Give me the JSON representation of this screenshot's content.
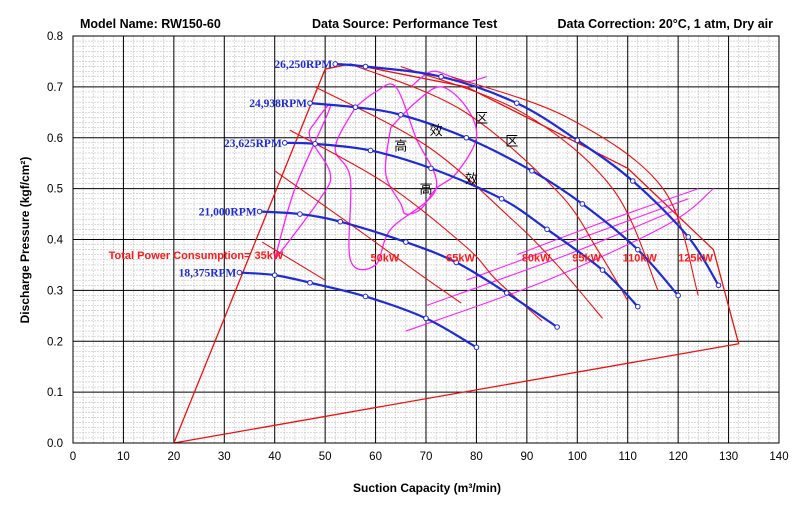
{
  "header": {
    "model": "Model Name: RW150-60",
    "source": "Data Source: Performance Test",
    "correction": "Data Correction: 20°C, 1 atm, Dry air"
  },
  "colors": {
    "rpm_curve": "#1f2bd4",
    "power_line": "#ee1111",
    "efficiency": "#ff22ff",
    "envelope": "#ee1111"
  },
  "chart_data": {
    "type": "line",
    "xlabel": "Suction Capacity (m³/min)",
    "ylabel": "Discharge Pressure (kgf/cm²)",
    "xlim": [
      0,
      140
    ],
    "ylim": [
      0,
      0.8
    ],
    "xticks": [
      "0",
      "10",
      "20",
      "30",
      "40",
      "50",
      "60",
      "70",
      "80",
      "90",
      "100",
      "110",
      "120",
      "130",
      "140"
    ],
    "yticks": [
      "0.0",
      "0.1",
      "0.2",
      "0.3",
      "0.4",
      "0.5",
      "0.6",
      "0.7",
      "0.8"
    ],
    "grid": true,
    "rpm_series": [
      {
        "name": "18,375RPM",
        "x": [
          33,
          40,
          47,
          58,
          70,
          80
        ],
        "y": [
          0.335,
          0.33,
          0.315,
          0.288,
          0.245,
          0.188
        ]
      },
      {
        "name": "21,000RPM",
        "x": [
          37,
          45,
          53,
          66,
          76,
          86,
          96
        ],
        "y": [
          0.455,
          0.45,
          0.435,
          0.395,
          0.355,
          0.295,
          0.228
        ]
      },
      {
        "name": "23,625RPM",
        "x": [
          42,
          48,
          59,
          71,
          85,
          94,
          105,
          112
        ],
        "y": [
          0.59,
          0.588,
          0.575,
          0.54,
          0.48,
          0.42,
          0.34,
          0.268
        ]
      },
      {
        "name": "24,938RPM",
        "x": [
          47,
          56,
          65,
          78,
          91,
          101,
          112,
          120
        ],
        "y": [
          0.668,
          0.66,
          0.645,
          0.6,
          0.535,
          0.47,
          0.38,
          0.29
        ]
      },
      {
        "name": "26,250RPM",
        "x": [
          52,
          58,
          73,
          88,
          100,
          111,
          122,
          128
        ],
        "y": [
          0.745,
          0.74,
          0.72,
          0.668,
          0.595,
          0.515,
          0.405,
          0.31
        ]
      }
    ],
    "power_lines": [
      {
        "name": "35kW",
        "x": [
          37.5,
          50
        ],
        "y": [
          0.395,
          0.32
        ]
      },
      {
        "name": "50kW",
        "x": [
          40,
          55,
          69,
          77
        ],
        "y": [
          0.535,
          0.43,
          0.33,
          0.275
        ]
      },
      {
        "name": "65kW",
        "x": [
          43,
          62,
          78,
          84,
          93
        ],
        "y": [
          0.615,
          0.51,
          0.385,
          0.32,
          0.24
        ]
      },
      {
        "name": "80kW",
        "x": [
          48,
          70,
          87,
          96,
          105
        ],
        "y": [
          0.7,
          0.585,
          0.44,
          0.35,
          0.245
        ]
      },
      {
        "name": "95kW",
        "x": [
          55,
          77,
          96,
          104,
          110
        ],
        "y": [
          0.745,
          0.655,
          0.495,
          0.38,
          0.28
        ]
      },
      {
        "name": "110kW",
        "x": [
          65,
          89,
          107,
          116
        ],
        "y": [
          0.74,
          0.65,
          0.5,
          0.3
        ]
      },
      {
        "name": "125kW",
        "x": [
          75,
          98,
          117,
          124
        ],
        "y": [
          0.72,
          0.64,
          0.5,
          0.29
        ]
      }
    ],
    "envelope": {
      "x": [
        20,
        50,
        55,
        78,
        110,
        127,
        132,
        20
      ],
      "y": [
        0.0,
        0.735,
        0.745,
        0.7,
        0.54,
        0.38,
        0.195,
        0.0
      ]
    },
    "efficiency_contours": [
      {
        "x": [
          40,
          49,
          51,
          47,
          48,
          51,
          44,
          40
        ],
        "y": [
          0.36,
          0.48,
          0.53,
          0.6,
          0.63,
          0.66,
          0.5,
          0.36
        ]
      },
      {
        "x": [
          56,
          52,
          55,
          55,
          60,
          63,
          72,
          68,
          64,
          60,
          56
        ],
        "y": [
          0.66,
          0.58,
          0.52,
          0.36,
          0.35,
          0.42,
          0.5,
          0.6,
          0.7,
          0.69,
          0.66
        ]
      },
      {
        "x": [
          63,
          62,
          65,
          66,
          69,
          72,
          76,
          80,
          78,
          73,
          68,
          63
        ],
        "y": [
          0.62,
          0.53,
          0.47,
          0.45,
          0.46,
          0.5,
          0.53,
          0.6,
          0.66,
          0.7,
          0.67,
          0.62
        ]
      },
      {
        "x": [
          67,
          71,
          75,
          78,
          82
        ],
        "y": [
          0.7,
          0.73,
          0.72,
          0.71,
          0.72
        ]
      }
    ],
    "efficiency_guides": [
      {
        "x": [
          66,
          94,
          118,
          127
        ],
        "y": [
          0.22,
          0.32,
          0.43,
          0.5
        ]
      },
      {
        "x": [
          70,
          98,
          120
        ],
        "y": [
          0.27,
          0.37,
          0.46
        ]
      },
      {
        "x": [
          78,
          100,
          122
        ],
        "y": [
          0.32,
          0.4,
          0.48
        ]
      },
      {
        "x": [
          88,
          104,
          124
        ],
        "y": [
          0.37,
          0.43,
          0.5
        ]
      }
    ],
    "rpm_label_points": [
      [
        33,
        0.335
      ],
      [
        37,
        0.455
      ],
      [
        42,
        0.59
      ],
      [
        47,
        0.668
      ],
      [
        52,
        0.745
      ]
    ],
    "power_label_points": [
      [
        36,
        0.37
      ],
      [
        59,
        0.365
      ],
      [
        74,
        0.365
      ],
      [
        89,
        0.365
      ],
      [
        99,
        0.365
      ],
      [
        109,
        0.365
      ],
      [
        120,
        0.365
      ]
    ],
    "total_power_label": "Total Power Consumption=",
    "zone_chars": [
      {
        "text": "高",
        "x": 65,
        "y": 0.575
      },
      {
        "text": "效",
        "x": 72,
        "y": 0.605
      },
      {
        "text": "区",
        "x": 81,
        "y": 0.63
      },
      {
        "text": "区",
        "x": 87,
        "y": 0.585
      },
      {
        "text": "高",
        "x": 70,
        "y": 0.49
      },
      {
        "text": "效",
        "x": 79,
        "y": 0.51
      }
    ]
  }
}
